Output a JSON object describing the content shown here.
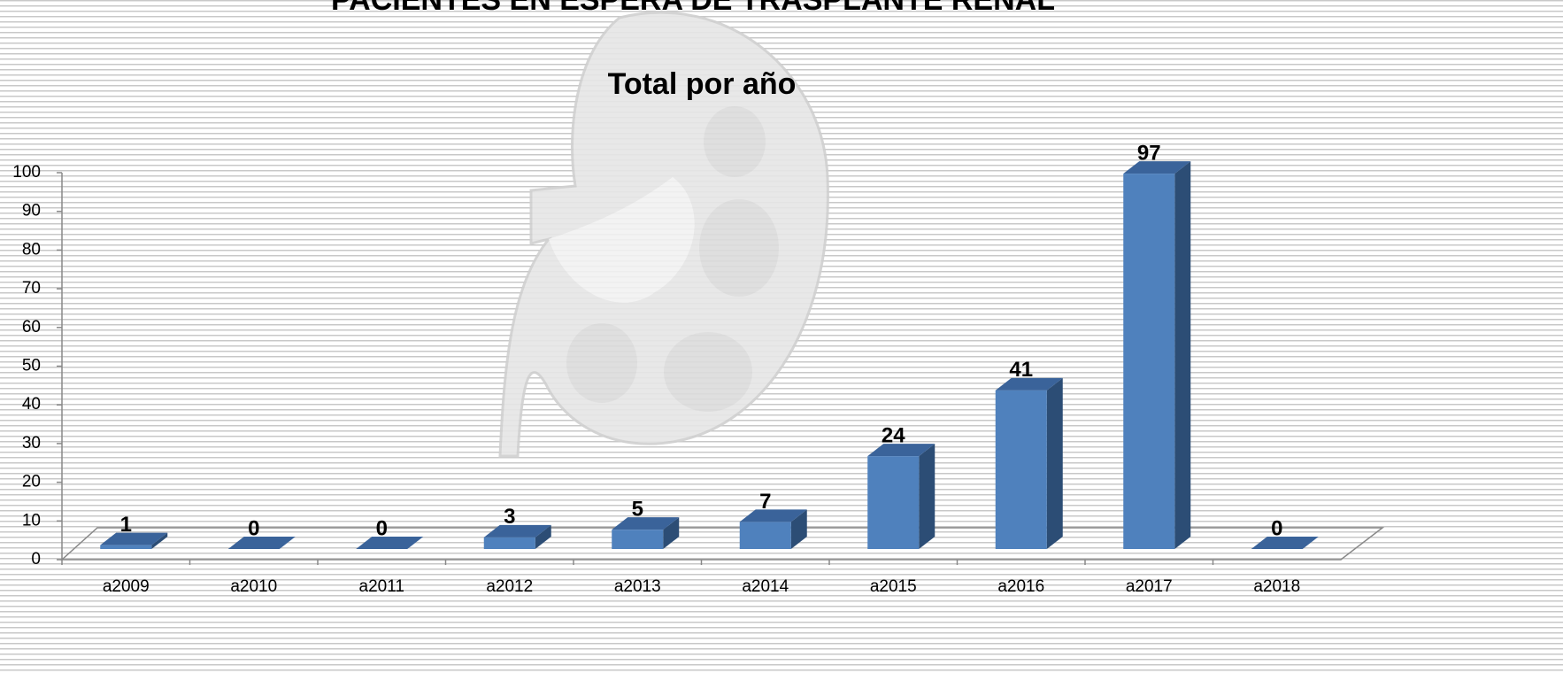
{
  "chart_data": {
    "type": "bar3d",
    "title": "PACIENTES EN ESPERA DE TRASPLANTE RENAL",
    "subtitle": "Total por año",
    "categories": [
      "a2009",
      "a2010",
      "a2011",
      "a2012",
      "a2013",
      "a2014",
      "a2015",
      "a2016",
      "a2017",
      "a2018"
    ],
    "values": [
      1,
      0,
      0,
      3,
      5,
      7,
      24,
      41,
      97,
      0
    ],
    "color": "#4f81bd",
    "ylim": [
      0,
      100
    ],
    "yticks": [
      0,
      10,
      20,
      30,
      40,
      50,
      60,
      70,
      80,
      90,
      100
    ]
  }
}
